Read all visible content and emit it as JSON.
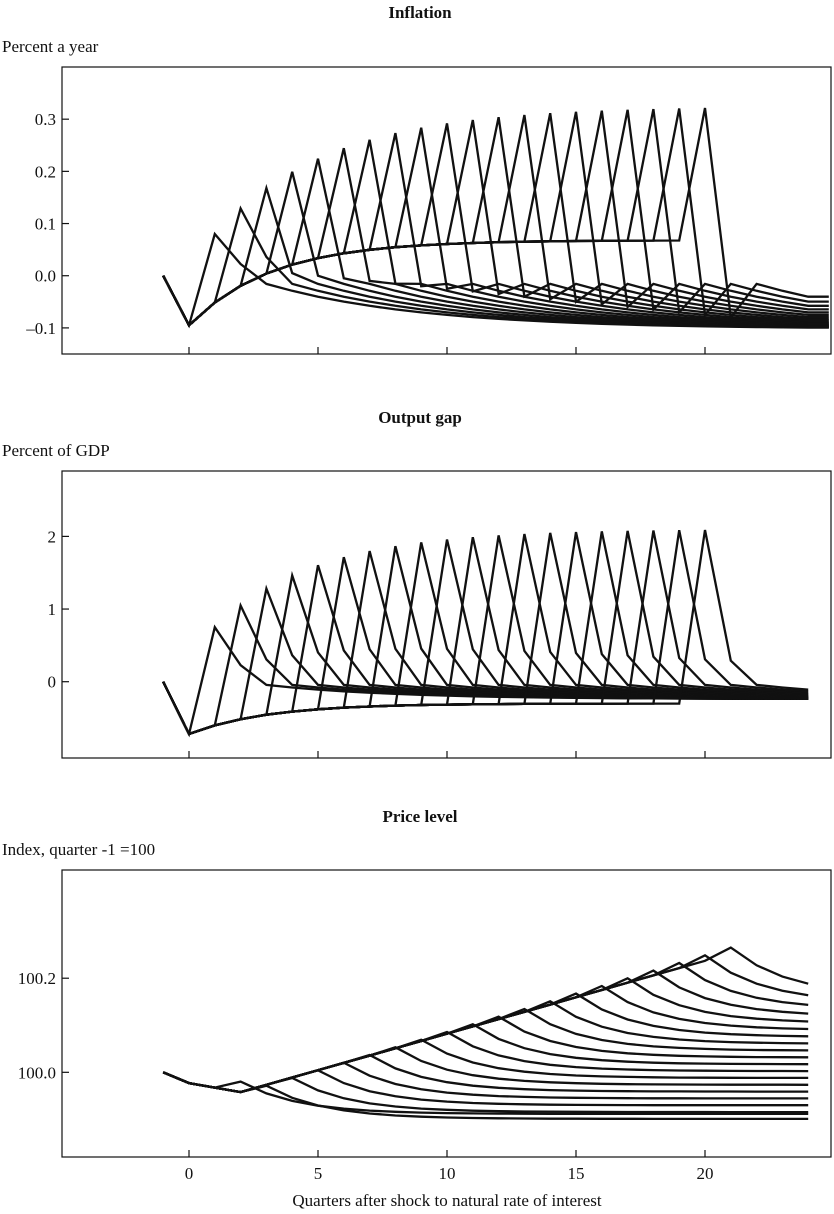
{
  "xlabel": "Quarters after shock to natural rate of interest",
  "x_ticks": [
    0,
    5,
    10,
    15,
    20
  ],
  "chart_data": [
    {
      "type": "line",
      "title": "Inflation",
      "ylabel": "Percent a year",
      "xlim": [
        -5,
        25
      ],
      "ylim": [
        -0.15,
        0.4
      ],
      "y_ticks": [
        0.3,
        0.2,
        0.1,
        0.0,
        -0.1
      ],
      "y_tick_labels": [
        "0.3",
        "0.2",
        "0.1",
        "0.0",
        "–0.1"
      ],
      "model": {
        "impact": -0.095,
        "recovery_plateau": 0.068,
        "jump_at_announce": 0.08,
        "jump_peak": 0.325,
        "after_drift": -0.12
      },
      "description_series": "Family of 20 paths; path k follows a common recovery path and jumps at quarter k"
    },
    {
      "type": "line",
      "title": "Output gap",
      "ylabel": "Percent of GDP",
      "xlim": [
        -5,
        25
      ],
      "ylim": [
        -1.05,
        2.9
      ],
      "y_ticks": [
        2,
        1,
        0
      ],
      "y_tick_labels": [
        "2",
        "1",
        "0"
      ],
      "model": {
        "impact": -0.72,
        "recovery_plateau": -0.3,
        "jump_at_announce": 0.75,
        "jump_peak": 2.1,
        "after_drift": -0.4
      }
    },
    {
      "type": "line",
      "title": "Price level",
      "ylabel": "Index, quarter -1 =100",
      "xlim": [
        -5,
        25
      ],
      "ylim": [
        99.82,
        100.43
      ],
      "y_ticks": [
        100.2,
        100.0
      ],
      "y_tick_labels": [
        "100.2",
        "100.0"
      ],
      "model": {
        "impact": 99.977,
        "trough": 99.958,
        "trend_slope": 0.0155,
        "peak": 100.33
      }
    }
  ]
}
